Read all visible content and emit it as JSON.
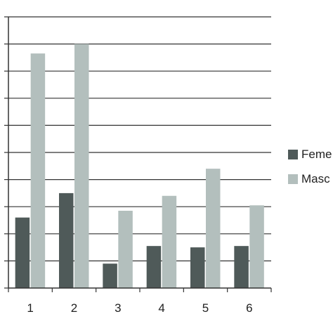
{
  "chart_data": {
    "type": "bar",
    "categories": [
      "1",
      "2",
      "3",
      "4",
      "5",
      "6"
    ],
    "ylim": [
      0,
      10
    ],
    "grid": true,
    "legend_position": "right",
    "series": [
      {
        "name": "Feme",
        "color": "#4f5a59",
        "values": [
          2.6,
          3.5,
          0.9,
          1.55,
          1.5,
          1.55
        ]
      },
      {
        "name": "Masc",
        "color": "#b3bfbd",
        "values": [
          8.65,
          9.0,
          2.85,
          3.4,
          4.4,
          3.05
        ]
      }
    ]
  }
}
